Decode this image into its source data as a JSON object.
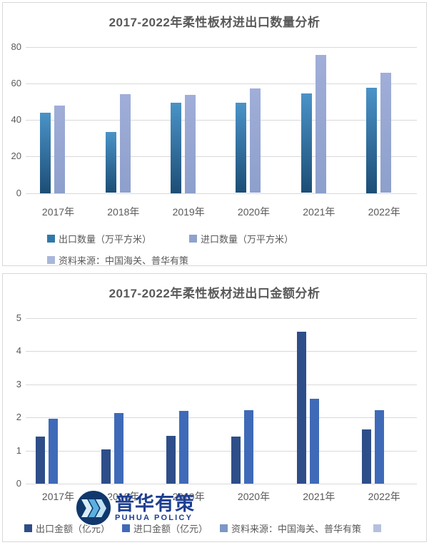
{
  "charts": [
    {
      "title": "2017-2022年柔性板材进出口数量分析",
      "chart_data": {
        "type": "bar",
        "categories": [
          "2017年",
          "2018年",
          "2019年",
          "2020年",
          "2021年",
          "2022年"
        ],
        "series": [
          {
            "name": "出口数量（万平方米）",
            "values": [
              44.0,
              33.2,
              49.5,
              49.3,
              54.6,
              57.5
            ],
            "color": "#4a93c8",
            "color2": "#1c4e76",
            "legend_color": "#3078aa"
          },
          {
            "name": "进口数量（万平方米）",
            "values": [
              48.0,
              54.1,
              53.5,
              57.2,
              75.5,
              65.6
            ],
            "color": "#a0aed8",
            "color2": "#8d9fcc",
            "legend_color": "#8ea2ce"
          }
        ],
        "source_entry": {
          "label": "资料来源：中国海关、普华有策",
          "color": "#a9b7da"
        },
        "ylim": [
          0,
          80
        ],
        "yticks": [
          0,
          20,
          40,
          60,
          80
        ],
        "grid": "horizontal",
        "legend_position": "bottom"
      }
    },
    {
      "title": "2017-2022年柔性板材进出口金额分析",
      "chart_data": {
        "type": "bar",
        "categories": [
          "2017年",
          "2018年",
          "2019年",
          "2020年",
          "2021年",
          "2022年"
        ],
        "series": [
          {
            "name": "出口金额（亿元）",
            "values": [
              1.43,
              1.03,
              1.45,
              1.42,
              4.58,
              1.63
            ],
            "color": "#2e4e89",
            "color2": "#2e4e89",
            "legend_color": "#2e4d87"
          },
          {
            "name": "进口金额（亿元）",
            "values": [
              1.96,
              2.13,
              2.2,
              2.22,
              2.55,
              2.22
            ],
            "color": "#3f6ab8",
            "color2": "#3f6ab8",
            "legend_color": "#3f6ab8"
          }
        ],
        "source_entry": {
          "label": "资料来源：中国海关、普华有策",
          "color": "#7e96c8"
        },
        "extra_swatch_color": "#b4c0de",
        "ylim": [
          0,
          5
        ],
        "yticks": [
          0,
          1,
          2,
          3,
          4,
          5
        ],
        "grid": "horizontal",
        "legend_position": "bottom"
      }
    }
  ],
  "watermark": {
    "line1": "普华有策",
    "line2": "PUHUA POLICY",
    "circle_color": "#10386d",
    "text_color": "#1d3e90"
  }
}
